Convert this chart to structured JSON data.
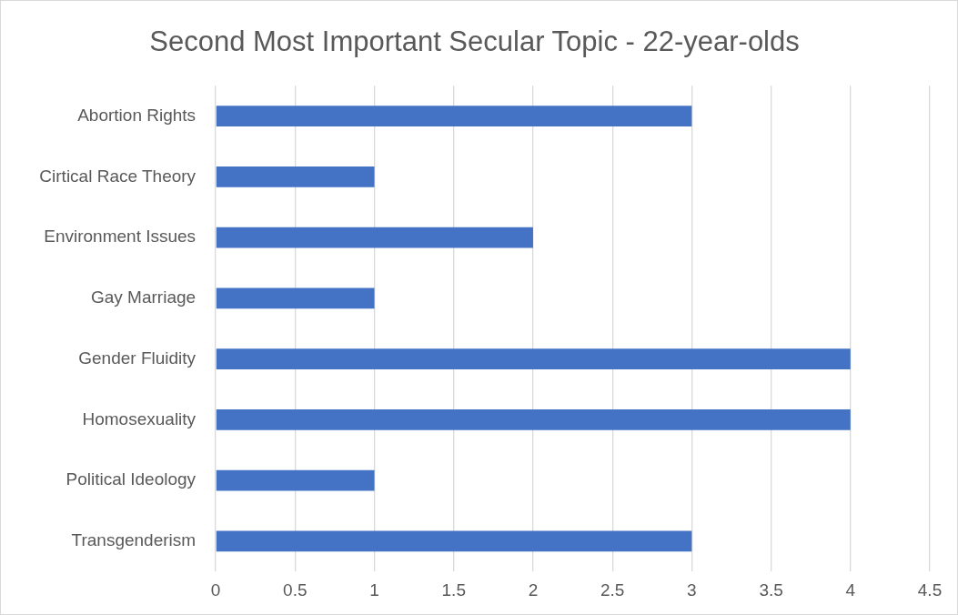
{
  "chart_data": {
    "type": "bar",
    "orientation": "horizontal",
    "title": "Second Most Important Secular Topic - 22-year-olds",
    "categories": [
      "Abortion Rights",
      "Cirtical Race Theory",
      "Environment Issues",
      "Gay Marriage",
      "Gender Fluidity",
      "Homosexuality",
      "Political Ideology",
      "Transgenderism"
    ],
    "values": [
      3,
      1,
      2,
      1,
      4,
      4,
      1,
      3
    ],
    "color": "#4472c4",
    "xlim": [
      0,
      4.5
    ],
    "xticks": [
      0,
      0.5,
      1,
      1.5,
      2,
      2.5,
      3,
      3.5,
      4,
      4.5
    ],
    "grid": "x"
  }
}
